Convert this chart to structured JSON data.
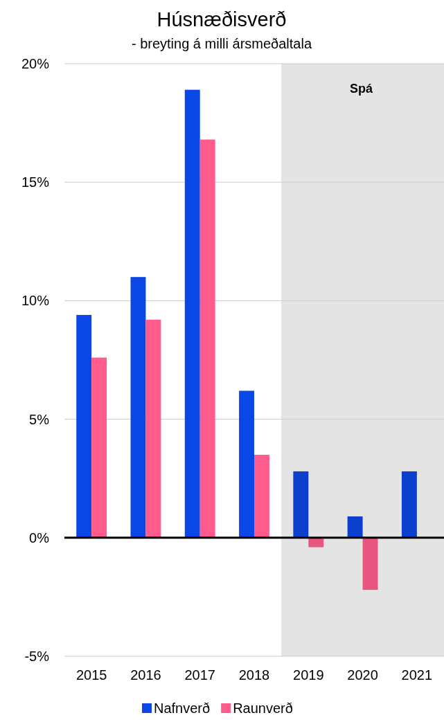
{
  "chart_data": {
    "type": "bar",
    "title": "Húsnæðisverð",
    "subtitle": "- breyting á milli ársmeðaltala",
    "categories": [
      "2015",
      "2016",
      "2017",
      "2018",
      "2019",
      "2020",
      "2021"
    ],
    "series": [
      {
        "name": "Nafnverð",
        "color": "#0b47e6",
        "colors": [
          "#0b47e6",
          "#0b47e6",
          "#0b47e6",
          "#0b47e6",
          "#0b3fcc",
          "#0b3fcc",
          "#0b3fcc"
        ],
        "values": [
          9.4,
          11.0,
          18.9,
          6.2,
          2.8,
          0.9,
          2.8
        ]
      },
      {
        "name": "Raunverð",
        "color": "#ff5c8d",
        "colors": [
          "#ff5c8d",
          "#ff5c8d",
          "#ff5c8d",
          "#ff5c8d",
          "#e8557f",
          "#e8557f",
          null
        ],
        "values": [
          7.6,
          9.2,
          16.8,
          3.5,
          -0.4,
          -2.2,
          null
        ]
      }
    ],
    "ylim": [
      -5,
      20
    ],
    "yticks": [
      {
        "value": -5,
        "label": "-5%"
      },
      {
        "value": 0,
        "label": "0%"
      },
      {
        "value": 5,
        "label": "5%"
      },
      {
        "value": 10,
        "label": "10%"
      },
      {
        "value": 15,
        "label": "15%"
      },
      {
        "value": 20,
        "label": "20%"
      }
    ],
    "bands": [
      {
        "axis": "x",
        "from": "2019",
        "to": "2021",
        "label": "Spá",
        "color": "#e4e4e4"
      }
    ],
    "grid": "y",
    "legend": "bottom"
  }
}
